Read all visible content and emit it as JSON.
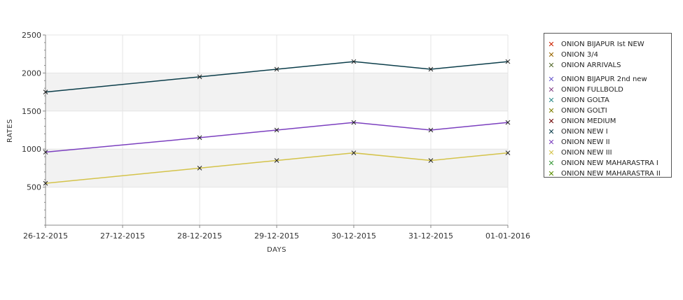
{
  "chart_data": {
    "type": "line",
    "xlabel": "DAYS",
    "ylabel": "RATES",
    "x": [
      "26-12-2015",
      "27-12-2015",
      "28-12-2015",
      "29-12-2015",
      "30-12-2015",
      "31-12-2015",
      "01-01-2016"
    ],
    "ylim": [
      0,
      2500
    ],
    "yticks": [
      500,
      1000,
      1500,
      2000,
      2500
    ],
    "grid": true,
    "legend_position": "right",
    "series": [
      {
        "name": " ONION BIJAPUR Ist NEW",
        "color": "#cc2200",
        "values": null
      },
      {
        "name": "ONION 3/4",
        "color": "#996600",
        "values": null
      },
      {
        "name": "ONION ARRIVALS",
        "color": "#556b2f",
        "values": null
      },
      {
        "name": "ONION BIJAPUR 2nd new",
        "color": "#6a5acd",
        "values": null
      },
      {
        "name": "ONION FULLBOLD",
        "color": "#884488",
        "values": null
      },
      {
        "name": "ONION GOLTA",
        "color": "#2e8b8b",
        "values": null
      },
      {
        "name": "ONION GOLTI",
        "color": "#808000",
        "values": null
      },
      {
        "name": "ONION MEDIUM",
        "color": "#6b0000",
        "values": null
      },
      {
        "name": "ONION NEW I",
        "color": "#0b3d4a",
        "values": [
          1750,
          null,
          1950,
          2050,
          2150,
          2050,
          2150
        ]
      },
      {
        "name": "ONION NEW II",
        "color": "#7b3fbf",
        "values": [
          960,
          null,
          1150,
          1250,
          1350,
          1250,
          1350
        ]
      },
      {
        "name": "ONION NEW III",
        "color": "#d4c34a",
        "values": [
          550,
          null,
          750,
          850,
          950,
          850,
          950
        ]
      },
      {
        "name": "ONION NEW MAHARASTRA I",
        "color": "#3a9a3a",
        "values": null
      },
      {
        "name": "ONION NEW MAHARASTRA II",
        "color": "#5a8f00",
        "values": null
      }
    ]
  }
}
